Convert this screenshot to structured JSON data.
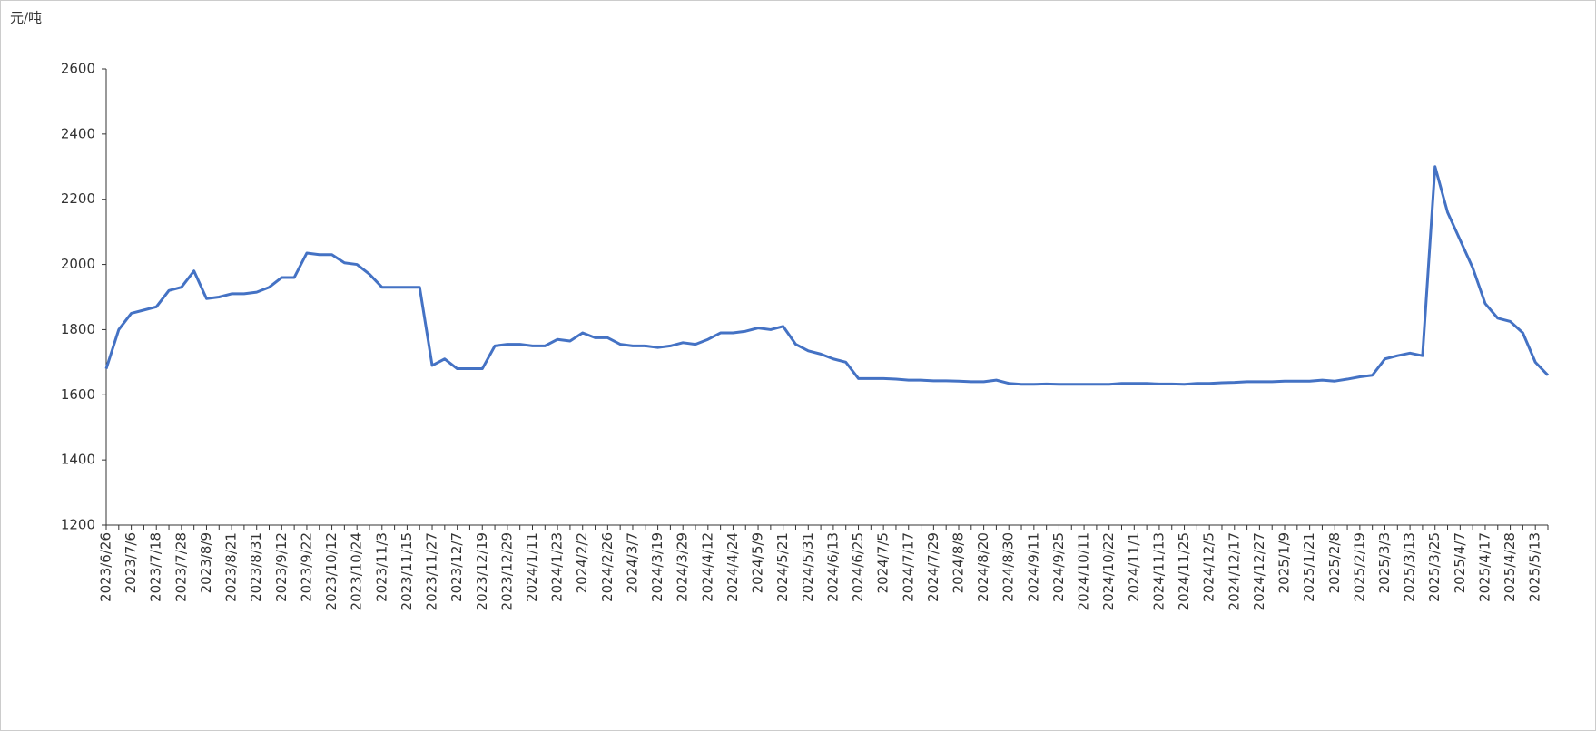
{
  "chart_data": {
    "type": "line",
    "y_label": "元/吨",
    "categories": [
      "2023/6/26",
      null,
      "2023/7/6",
      null,
      "2023/7/18",
      null,
      "2023/7/28",
      null,
      "2023/8/9",
      null,
      "2023/8/21",
      null,
      "2023/8/31",
      null,
      "2023/9/12",
      null,
      "2023/9/22",
      null,
      "2023/10/12",
      null,
      "2023/10/24",
      null,
      "2023/11/3",
      null,
      "2023/11/15",
      null,
      "2023/11/27",
      null,
      "2023/12/7",
      null,
      "2023/12/19",
      null,
      "2023/12/29",
      null,
      "2024/1/11",
      null,
      "2024/1/23",
      null,
      "2024/2/2",
      null,
      "2024/2/26",
      null,
      "2024/3/7",
      null,
      "2024/3/19",
      null,
      "2024/3/29",
      null,
      "2024/4/12",
      null,
      "2024/4/24",
      null,
      "2024/5/9",
      null,
      "2024/5/21",
      null,
      "2024/5/31",
      null,
      "2024/6/13",
      null,
      "2024/6/25",
      null,
      "2024/7/5",
      null,
      "2024/7/17",
      null,
      "2024/7/29",
      null,
      "2024/8/8",
      null,
      "2024/8/20",
      null,
      "2024/8/30",
      null,
      "2024/9/11",
      null,
      "2024/9/25",
      null,
      "2024/10/11",
      null,
      "2024/10/22",
      null,
      "2024/11/1",
      null,
      "2024/11/13",
      null,
      "2024/11/25",
      null,
      "2024/12/5",
      null,
      "2024/12/17",
      null,
      "2024/12/27",
      null,
      "2025/1/9",
      null,
      "2025/1/21",
      null,
      "2025/2/8",
      null,
      "2025/2/19",
      null,
      "2025/3/3",
      null,
      "2025/3/13",
      null,
      "2025/3/25",
      null,
      "2025/4/7",
      null,
      "2025/4/17",
      null,
      "2025/4/28",
      null,
      "2025/5/13",
      null
    ],
    "values": [
      1680,
      1800,
      1850,
      1860,
      1870,
      1920,
      1930,
      1980,
      1895,
      1900,
      1910,
      1910,
      1915,
      1930,
      1960,
      1960,
      2035,
      2030,
      2030,
      2005,
      2000,
      1970,
      1930,
      1930,
      1930,
      1930,
      1690,
      1710,
      1680,
      1680,
      1680,
      1750,
      1755,
      1755,
      1750,
      1750,
      1770,
      1765,
      1790,
      1775,
      1775,
      1755,
      1750,
      1750,
      1745,
      1750,
      1760,
      1755,
      1770,
      1790,
      1790,
      1795,
      1805,
      1800,
      1810,
      1755,
      1735,
      1725,
      1710,
      1700,
      1650,
      1650,
      1650,
      1648,
      1645,
      1645,
      1643,
      1643,
      1642,
      1640,
      1640,
      1645,
      1635,
      1632,
      1632,
      1633,
      1632,
      1632,
      1632,
      1632,
      1632,
      1635,
      1635,
      1635,
      1633,
      1633,
      1632,
      1635,
      1635,
      1637,
      1638,
      1640,
      1640,
      1640,
      1642,
      1642,
      1642,
      1645,
      1642,
      1648,
      1655,
      1660,
      1710,
      1720,
      1728,
      1720,
      2300,
      2160,
      2075,
      1990,
      1880,
      1835,
      1825,
      1790,
      1700,
      1660
    ],
    "color": "#4472c4",
    "ylim": [
      1200,
      2600
    ],
    "yticks": [
      1200,
      1400,
      1600,
      1800,
      2000,
      2200,
      2400,
      2600
    ]
  }
}
